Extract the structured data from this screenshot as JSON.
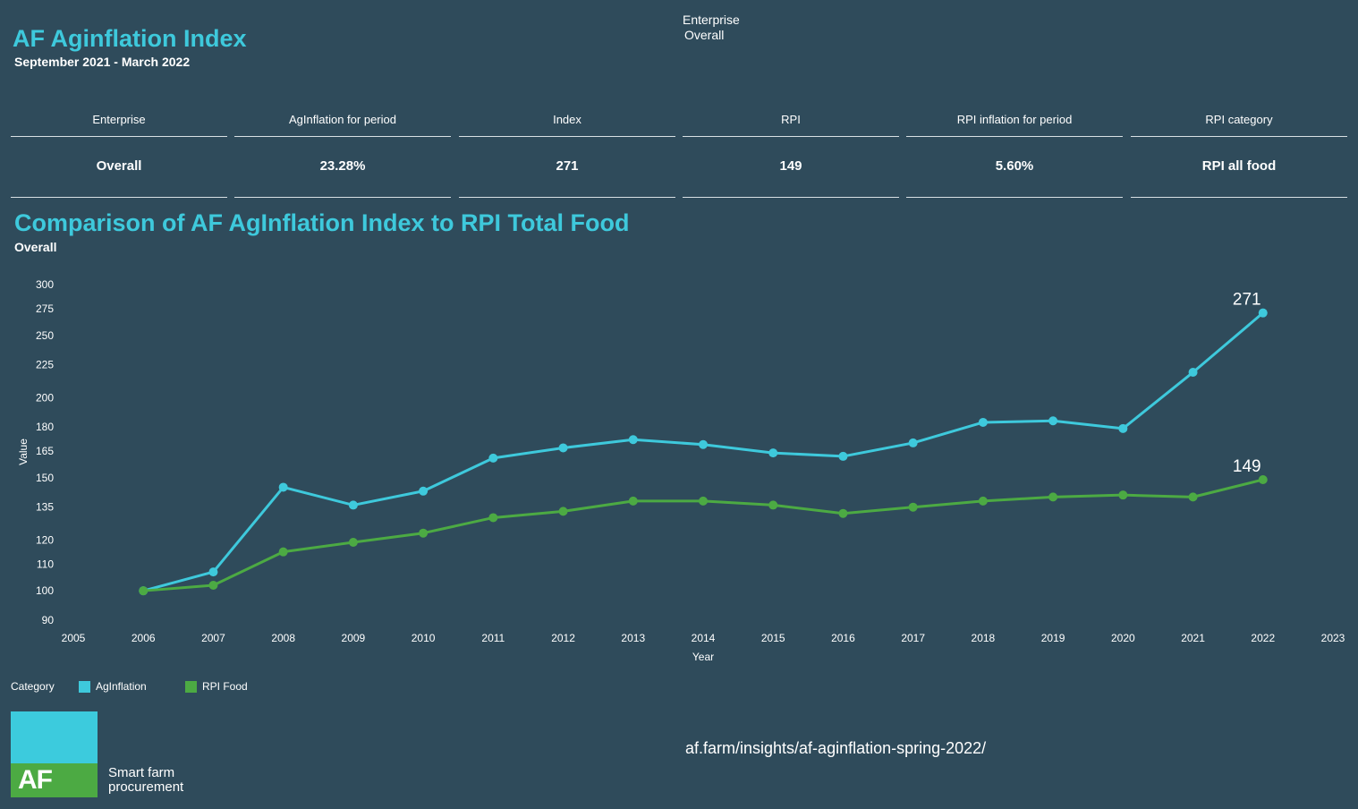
{
  "header": {
    "title": "AF Aginflation Index",
    "subtitle": "September 2021 - March 2022",
    "filter_label": "Enterprise",
    "filter_value": "Overall"
  },
  "kpis": [
    {
      "header": "Enterprise",
      "value": "Overall"
    },
    {
      "header": "AgInflation for period",
      "value": "23.28%"
    },
    {
      "header": "Index",
      "value": "271"
    },
    {
      "header": "RPI",
      "value": "149"
    },
    {
      "header": "RPI inflation for period",
      "value": "5.60%"
    },
    {
      "header": "RPI category",
      "value": "RPI all food"
    }
  ],
  "chart_section": {
    "title": "Comparison of AF AgInflation Index to RPI Total Food",
    "subtitle": "Overall"
  },
  "chart_data": {
    "type": "line",
    "title": "Comparison of AF AgInflation Index to RPI Total Food",
    "subtitle": "Overall",
    "xlabel": "Year",
    "ylabel": "Value",
    "y_scale": "log",
    "x_ticks": [
      2005,
      2006,
      2007,
      2008,
      2009,
      2010,
      2011,
      2012,
      2013,
      2014,
      2015,
      2016,
      2017,
      2018,
      2019,
      2020,
      2021,
      2022,
      2023
    ],
    "y_ticks": [
      90,
      100,
      110,
      120,
      135,
      150,
      165,
      180,
      200,
      225,
      250,
      275,
      300
    ],
    "xlim": [
      2005,
      2023
    ],
    "ylim": [
      90,
      300
    ],
    "grid": false,
    "legend_title": "Category",
    "legend_position": "bottom-left",
    "x": [
      2006,
      2007,
      2008,
      2009,
      2010,
      2011,
      2012,
      2013,
      2014,
      2015,
      2016,
      2017,
      2018,
      2019,
      2020,
      2021,
      2022
    ],
    "series": [
      {
        "name": "AgInflation",
        "color": "#3ec9dc",
        "values": [
          100,
          107,
          145,
          136,
          143,
          161,
          167,
          172,
          169,
          164,
          162,
          170,
          183,
          184,
          179,
          219,
          271
        ],
        "end_label": "271"
      },
      {
        "name": "RPI Food",
        "color": "#4caa43",
        "values": [
          100,
          102,
          115,
          119,
          123,
          130,
          133,
          138,
          138,
          136,
          132,
          135,
          138,
          140,
          141,
          140,
          149
        ],
        "end_label": "149"
      }
    ]
  },
  "footer": {
    "logo_text": "AF",
    "logo_tagline_1": "Smart farm",
    "logo_tagline_2": "procurement",
    "url": "af.farm/insights/af-aginflation-spring-2022/"
  }
}
